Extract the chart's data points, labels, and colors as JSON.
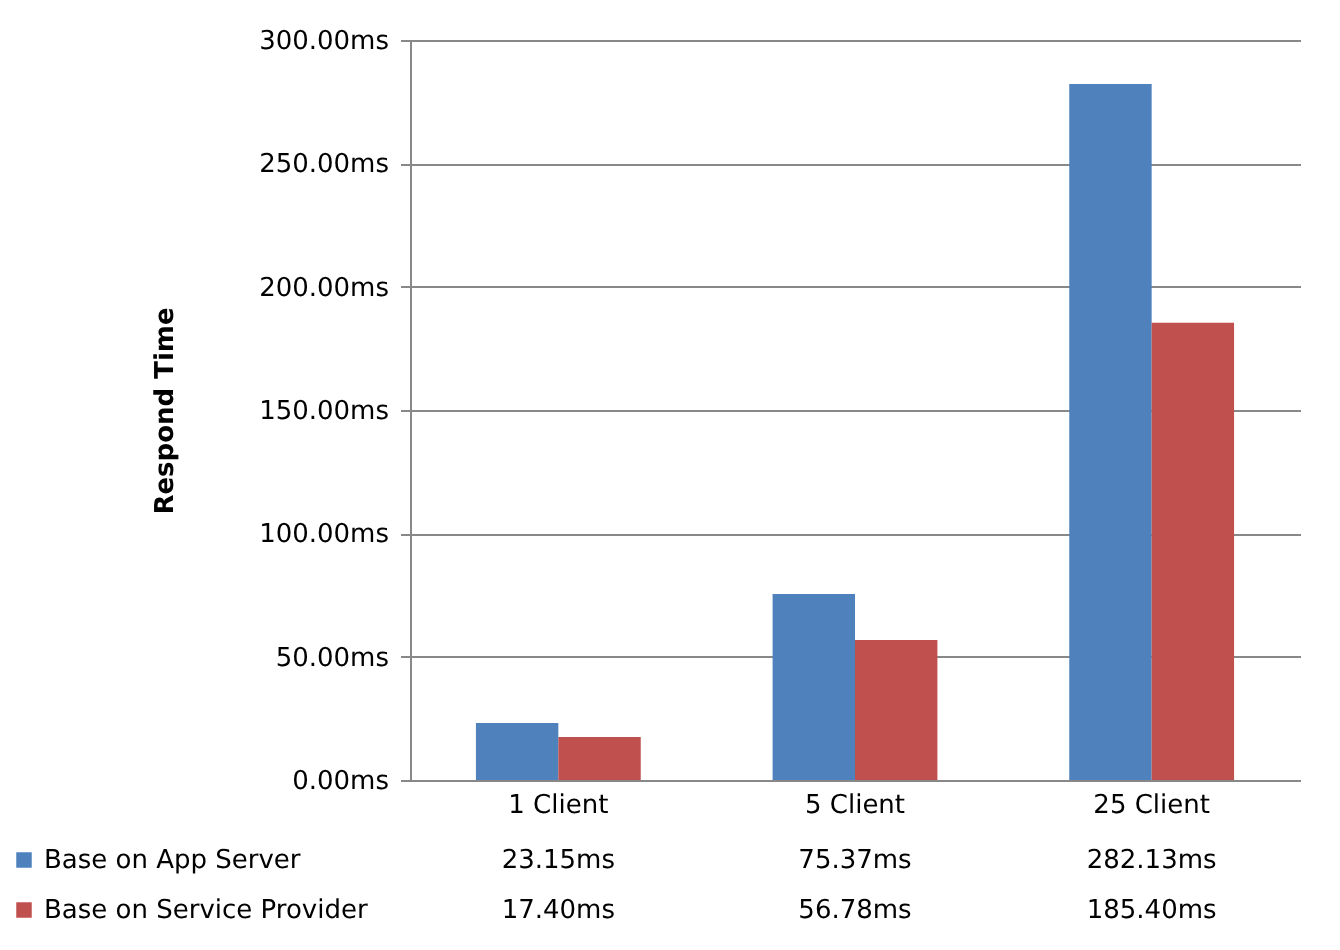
{
  "chart_data": {
    "type": "bar",
    "ylabel": "Respond Time",
    "categories": [
      "1 Client",
      "5 Client",
      "25 Client"
    ],
    "series": [
      {
        "name": "Base on App Server",
        "color": "#4f81bd",
        "values": [
          23.15,
          75.37,
          282.13
        ],
        "value_labels": [
          "23.15ms",
          "75.37ms",
          "282.13ms"
        ]
      },
      {
        "name": "Base on Service Provider",
        "color": "#c0504d",
        "values": [
          17.4,
          56.78,
          185.4
        ],
        "value_labels": [
          "17.40ms",
          "56.78ms",
          "185.40ms"
        ]
      }
    ],
    "ylim": [
      0,
      300
    ],
    "yticks": [
      {
        "value": 0,
        "label": "0.00ms"
      },
      {
        "value": 50,
        "label": "50.00ms"
      },
      {
        "value": 100,
        "label": "100.00ms"
      },
      {
        "value": 150,
        "label": "150.00ms"
      },
      {
        "value": 200,
        "label": "200.00ms"
      },
      {
        "value": 250,
        "label": "250.00ms"
      },
      {
        "value": 300,
        "label": "300.00ms"
      }
    ],
    "grid": "y",
    "legend": "bottom"
  }
}
